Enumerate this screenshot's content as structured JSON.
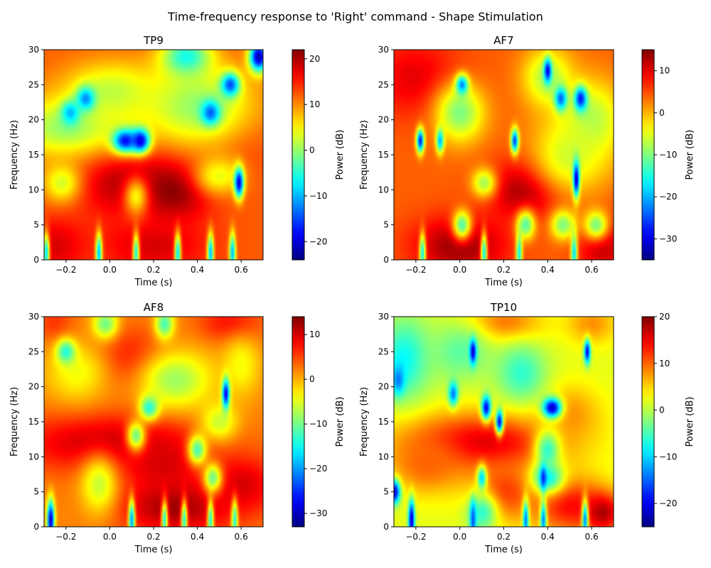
{
  "figure": {
    "title": "Time-frequency response to 'Right' command - Shape Stimulation"
  },
  "chart_data": [
    {
      "type": "heatmap",
      "title": "TP9",
      "xlabel": "Time (s)",
      "ylabel": "Frequency (Hz)",
      "xlim": [
        -0.3,
        0.7
      ],
      "ylim": [
        0,
        30
      ],
      "xticks": [
        -0.2,
        0.0,
        0.2,
        0.4,
        0.6
      ],
      "yticks": [
        0,
        5,
        10,
        15,
        20,
        25,
        30
      ],
      "colorbar": {
        "label": "Power (dB)",
        "range": [
          -24,
          22
        ],
        "ticks": [
          -20,
          -10,
          0,
          10,
          20
        ]
      },
      "colormap": "jet",
      "base_level": 12,
      "features": [
        {
          "t": 0.08,
          "f": 11,
          "value": 20,
          "ht": 0.16,
          "hf": 3.5
        },
        {
          "t": 0.3,
          "f": 10,
          "value": 22,
          "ht": 0.12,
          "hf": 3
        },
        {
          "t": 0.2,
          "f": 2,
          "value": 18,
          "ht": 0.18,
          "hf": 3
        },
        {
          "t": -0.25,
          "f": 2,
          "value": 18,
          "ht": 0.1,
          "hf": 3
        },
        {
          "t": 0.6,
          "f": 16,
          "value": 14,
          "ht": 0.1,
          "hf": 4
        },
        {
          "t": -0.2,
          "f": 19,
          "value": 0,
          "ht": 0.18,
          "hf": 3
        },
        {
          "t": 0.0,
          "f": 24,
          "value": 2,
          "ht": 0.15,
          "hf": 3
        },
        {
          "t": 0.4,
          "f": 22,
          "value": 0,
          "ht": 0.18,
          "hf": 4
        },
        {
          "t": -0.22,
          "f": 11,
          "value": 3,
          "ht": 0.06,
          "hf": 2
        },
        {
          "t": 0.12,
          "f": 9,
          "value": 5,
          "ht": 0.04,
          "hf": 2
        },
        {
          "t": 0.5,
          "f": 12,
          "value": 4,
          "ht": 0.08,
          "hf": 2
        },
        {
          "t": 0.35,
          "f": 29,
          "value": -6,
          "ht": 0.08,
          "hf": 2
        },
        {
          "t": 0.68,
          "f": 29,
          "value": -22,
          "ht": 0.03,
          "hf": 1.5
        },
        {
          "t": 0.07,
          "f": 17,
          "value": -18,
          "ht": 0.04,
          "hf": 1.2
        },
        {
          "t": 0.14,
          "f": 17,
          "value": -20,
          "ht": 0.03,
          "hf": 1.2
        },
        {
          "t": -0.11,
          "f": 23,
          "value": -12,
          "ht": 0.03,
          "hf": 1.2
        },
        {
          "t": -0.18,
          "f": 21,
          "value": -10,
          "ht": 0.03,
          "hf": 1.2
        },
        {
          "t": 0.46,
          "f": 21,
          "value": -14,
          "ht": 0.03,
          "hf": 1.2
        },
        {
          "t": 0.55,
          "f": 25,
          "value": -15,
          "ht": 0.03,
          "hf": 1.2
        },
        {
          "t": 0.59,
          "f": 11,
          "value": -20,
          "ht": 0.015,
          "hf": 1.5
        },
        {
          "t": -0.29,
          "f": 1,
          "value": -8,
          "ht": 0.01,
          "hf": 2
        },
        {
          "t": -0.05,
          "f": 1,
          "value": -10,
          "ht": 0.01,
          "hf": 2
        },
        {
          "t": 0.12,
          "f": 1,
          "value": -6,
          "ht": 0.01,
          "hf": 2
        },
        {
          "t": 0.31,
          "f": 1,
          "value": -8,
          "ht": 0.01,
          "hf": 2
        },
        {
          "t": 0.46,
          "f": 1,
          "value": -10,
          "ht": 0.01,
          "hf": 2
        },
        {
          "t": 0.56,
          "f": 1,
          "value": -10,
          "ht": 0.01,
          "hf": 2
        }
      ]
    },
    {
      "type": "heatmap",
      "title": "AF7",
      "xlabel": "Time (s)",
      "ylabel": "Frequency (Hz)",
      "xlim": [
        -0.3,
        0.7
      ],
      "ylim": [
        0,
        30
      ],
      "xticks": [
        -0.2,
        0.0,
        0.2,
        0.4,
        0.6
      ],
      "yticks": [
        0,
        5,
        10,
        15,
        20,
        25,
        30
      ],
      "colorbar": {
        "label": "Power (dB)",
        "range": [
          -35,
          15
        ],
        "ticks": [
          -30,
          -20,
          -10,
          0,
          10
        ]
      },
      "colormap": "jet",
      "base_level": 4,
      "features": [
        {
          "t": 0.3,
          "f": 10,
          "value": 14,
          "ht": 0.12,
          "hf": 3
        },
        {
          "t": 0.0,
          "f": 2,
          "value": 14,
          "ht": 0.15,
          "hf": 3
        },
        {
          "t": -0.2,
          "f": 26,
          "value": 10,
          "ht": 0.15,
          "hf": 4
        },
        {
          "t": 0.65,
          "f": 2,
          "value": 12,
          "ht": 0.08,
          "hf": 3
        },
        {
          "t": 0.0,
          "f": 21,
          "value": -10,
          "ht": 0.08,
          "hf": 3
        },
        {
          "t": 0.6,
          "f": 20,
          "value": -8,
          "ht": 0.1,
          "hf": 4
        },
        {
          "t": 0.5,
          "f": 15,
          "value": -6,
          "ht": 0.12,
          "hf": 4
        },
        {
          "t": 0.4,
          "f": 26,
          "value": -8,
          "ht": 0.08,
          "hf": 3
        },
        {
          "t": 0.01,
          "f": 5,
          "value": -12,
          "ht": 0.03,
          "hf": 1.5
        },
        {
          "t": 0.3,
          "f": 5,
          "value": -12,
          "ht": 0.03,
          "hf": 1.5
        },
        {
          "t": 0.47,
          "f": 5,
          "value": -10,
          "ht": 0.04,
          "hf": 1.5
        },
        {
          "t": 0.62,
          "f": 5,
          "value": -10,
          "ht": 0.04,
          "hf": 1.5
        },
        {
          "t": 0.11,
          "f": 11,
          "value": -8,
          "ht": 0.04,
          "hf": 1.5
        },
        {
          "t": 0.4,
          "f": 27,
          "value": -30,
          "ht": 0.012,
          "hf": 1.2
        },
        {
          "t": 0.01,
          "f": 25,
          "value": -22,
          "ht": 0.02,
          "hf": 1.0
        },
        {
          "t": -0.18,
          "f": 17,
          "value": -28,
          "ht": 0.012,
          "hf": 1.2
        },
        {
          "t": -0.09,
          "f": 17,
          "value": -20,
          "ht": 0.012,
          "hf": 1.2
        },
        {
          "t": 0.25,
          "f": 17,
          "value": -26,
          "ht": 0.012,
          "hf": 1.2
        },
        {
          "t": 0.46,
          "f": 23,
          "value": -24,
          "ht": 0.02,
          "hf": 1.2
        },
        {
          "t": 0.55,
          "f": 23,
          "value": -28,
          "ht": 0.02,
          "hf": 1.2
        },
        {
          "t": 0.53,
          "f": 11.5,
          "value": -32,
          "ht": 0.01,
          "hf": 1.8
        },
        {
          "t": -0.17,
          "f": 1,
          "value": -16,
          "ht": 0.01,
          "hf": 2
        },
        {
          "t": 0.11,
          "f": 1,
          "value": -16,
          "ht": 0.01,
          "hf": 2
        },
        {
          "t": 0.27,
          "f": 1,
          "value": -16,
          "ht": 0.01,
          "hf": 2
        },
        {
          "t": 0.52,
          "f": 1,
          "value": -18,
          "ht": 0.01,
          "hf": 2
        }
      ]
    },
    {
      "type": "heatmap",
      "title": "AF8",
      "xlabel": "Time (s)",
      "ylabel": "Frequency (Hz)",
      "xlim": [
        -0.3,
        0.7
      ],
      "ylim": [
        0,
        30
      ],
      "xticks": [
        -0.2,
        0.0,
        0.2,
        0.4,
        0.6
      ],
      "yticks": [
        0,
        5,
        10,
        15,
        20,
        25,
        30
      ],
      "colorbar": {
        "label": "Power (dB)",
        "range": [
          -33,
          14
        ],
        "ticks": [
          -30,
          -20,
          -10,
          0,
          10
        ]
      },
      "colormap": "jet",
      "base_level": 2,
      "features": [
        {
          "t": 0.0,
          "f": 12,
          "value": 11,
          "ht": 0.3,
          "hf": 3
        },
        {
          "t": 0.3,
          "f": 3,
          "value": 13,
          "ht": 0.18,
          "hf": 3
        },
        {
          "t": 0.6,
          "f": 6,
          "value": 10,
          "ht": 0.12,
          "hf": 3
        },
        {
          "t": 0.1,
          "f": 24,
          "value": 8,
          "ht": 0.12,
          "hf": 3
        },
        {
          "t": 0.55,
          "f": 29,
          "value": 8,
          "ht": 0.1,
          "hf": 2
        },
        {
          "t": -0.25,
          "f": 29,
          "value": 6,
          "ht": 0.06,
          "hf": 2
        },
        {
          "t": 0.25,
          "f": 9,
          "value": 10,
          "ht": 0.12,
          "hf": 3
        },
        {
          "t": -0.15,
          "f": 22,
          "value": -4,
          "ht": 0.1,
          "hf": 3
        },
        {
          "t": -0.05,
          "f": 6,
          "value": -6,
          "ht": 0.06,
          "hf": 3
        },
        {
          "t": 0.3,
          "f": 21,
          "value": -8,
          "ht": 0.12,
          "hf": 3
        },
        {
          "t": 0.5,
          "f": 15,
          "value": -6,
          "ht": 0.06,
          "hf": 2
        },
        {
          "t": 0.6,
          "f": 23,
          "value": -4,
          "ht": 0.06,
          "hf": 3
        },
        {
          "t": -0.02,
          "f": 29,
          "value": -10,
          "ht": 0.04,
          "hf": 1.5
        },
        {
          "t": 0.25,
          "f": 29,
          "value": -12,
          "ht": 0.03,
          "hf": 1.5
        },
        {
          "t": -0.2,
          "f": 25,
          "value": -14,
          "ht": 0.03,
          "hf": 1.2
        },
        {
          "t": 0.12,
          "f": 13,
          "value": -10,
          "ht": 0.03,
          "hf": 1.5
        },
        {
          "t": 0.18,
          "f": 17,
          "value": -14,
          "ht": 0.03,
          "hf": 1.2
        },
        {
          "t": 0.4,
          "f": 11,
          "value": -12,
          "ht": 0.03,
          "hf": 1.5
        },
        {
          "t": 0.47,
          "f": 7,
          "value": -10,
          "ht": 0.03,
          "hf": 1.5
        },
        {
          "t": 0.53,
          "f": 19,
          "value": -28,
          "ht": 0.012,
          "hf": 1.5
        },
        {
          "t": -0.27,
          "f": 1,
          "value": -30,
          "ht": 0.012,
          "hf": 2
        },
        {
          "t": 0.1,
          "f": 1,
          "value": -20,
          "ht": 0.01,
          "hf": 2
        },
        {
          "t": 0.25,
          "f": 1,
          "value": -14,
          "ht": 0.01,
          "hf": 2
        },
        {
          "t": 0.34,
          "f": 1,
          "value": -14,
          "ht": 0.01,
          "hf": 2
        },
        {
          "t": 0.46,
          "f": 1,
          "value": -14,
          "ht": 0.01,
          "hf": 2
        },
        {
          "t": 0.57,
          "f": 1,
          "value": -14,
          "ht": 0.01,
          "hf": 2
        }
      ]
    },
    {
      "type": "heatmap",
      "title": "TP10",
      "xlabel": "Time (s)",
      "ylabel": "Frequency (Hz)",
      "xlim": [
        -0.3,
        0.7
      ],
      "ylim": [
        0,
        30
      ],
      "xticks": [
        -0.2,
        0.0,
        0.2,
        0.4,
        0.6
      ],
      "yticks": [
        0,
        5,
        10,
        15,
        20,
        25,
        30
      ],
      "colorbar": {
        "label": "Power (dB)",
        "range": [
          -25,
          20
        ],
        "ticks": [
          -20,
          -10,
          0,
          10,
          20
        ]
      },
      "colormap": "jet",
      "base_level": 2,
      "features": [
        {
          "t": 0.1,
          "f": 12,
          "value": 16,
          "ht": 0.25,
          "hf": 3
        },
        {
          "t": -0.15,
          "f": 9,
          "value": 10,
          "ht": 0.12,
          "hf": 3
        },
        {
          "t": 0.2,
          "f": 5,
          "value": 12,
          "ht": 0.1,
          "hf": 3
        },
        {
          "t": 0.5,
          "f": 3,
          "value": 14,
          "ht": 0.12,
          "hf": 3
        },
        {
          "t": 0.65,
          "f": 2,
          "value": 18,
          "ht": 0.06,
          "hf": 2
        },
        {
          "t": 0.5,
          "f": 16,
          "value": 8,
          "ht": 0.1,
          "hf": 3
        },
        {
          "t": 0.2,
          "f": 29,
          "value": 10,
          "ht": 0.12,
          "hf": 2
        },
        {
          "t": 0.6,
          "f": 29,
          "value": 8,
          "ht": 0.08,
          "hf": 2
        },
        {
          "t": -0.25,
          "f": 24,
          "value": -8,
          "ht": 0.08,
          "hf": 4
        },
        {
          "t": 0.0,
          "f": 25,
          "value": -4,
          "ht": 0.1,
          "hf": 3
        },
        {
          "t": 0.28,
          "f": 22,
          "value": -6,
          "ht": 0.08,
          "hf": 3
        },
        {
          "t": 0.4,
          "f": 11,
          "value": -6,
          "ht": 0.04,
          "hf": 2
        },
        {
          "t": 0.4,
          "f": 7,
          "value": -8,
          "ht": 0.05,
          "hf": 1.5
        },
        {
          "t": 0.1,
          "f": 2,
          "value": -6,
          "ht": 0.05,
          "hf": 2
        },
        {
          "t": -0.3,
          "f": 5,
          "value": -22,
          "ht": 0.02,
          "hf": 1.2
        },
        {
          "t": -0.28,
          "f": 21,
          "value": -14,
          "ht": 0.02,
          "hf": 1.5
        },
        {
          "t": 0.06,
          "f": 25,
          "value": -22,
          "ht": 0.01,
          "hf": 1.2
        },
        {
          "t": 0.58,
          "f": 25,
          "value": -20,
          "ht": 0.01,
          "hf": 1.2
        },
        {
          "t": -0.03,
          "f": 19,
          "value": -14,
          "ht": 0.015,
          "hf": 1.2
        },
        {
          "t": 0.12,
          "f": 17,
          "value": -20,
          "ht": 0.015,
          "hf": 1.2
        },
        {
          "t": 0.18,
          "f": 15,
          "value": -20,
          "ht": 0.012,
          "hf": 1.2
        },
        {
          "t": 0.42,
          "f": 17,
          "value": -22,
          "ht": 0.03,
          "hf": 1.0
        },
        {
          "t": 0.38,
          "f": 7,
          "value": -18,
          "ht": 0.01,
          "hf": 1.2
        },
        {
          "t": 0.1,
          "f": 7,
          "value": -10,
          "ht": 0.015,
          "hf": 1.2
        },
        {
          "t": -0.22,
          "f": 1,
          "value": -22,
          "ht": 0.01,
          "hf": 2
        },
        {
          "t": 0.06,
          "f": 1,
          "value": -16,
          "ht": 0.01,
          "hf": 2
        },
        {
          "t": 0.3,
          "f": 1,
          "value": -14,
          "ht": 0.01,
          "hf": 2
        },
        {
          "t": 0.38,
          "f": 1,
          "value": -14,
          "ht": 0.01,
          "hf": 2
        },
        {
          "t": 0.57,
          "f": 1,
          "value": -14,
          "ht": 0.01,
          "hf": 2
        }
      ]
    }
  ]
}
